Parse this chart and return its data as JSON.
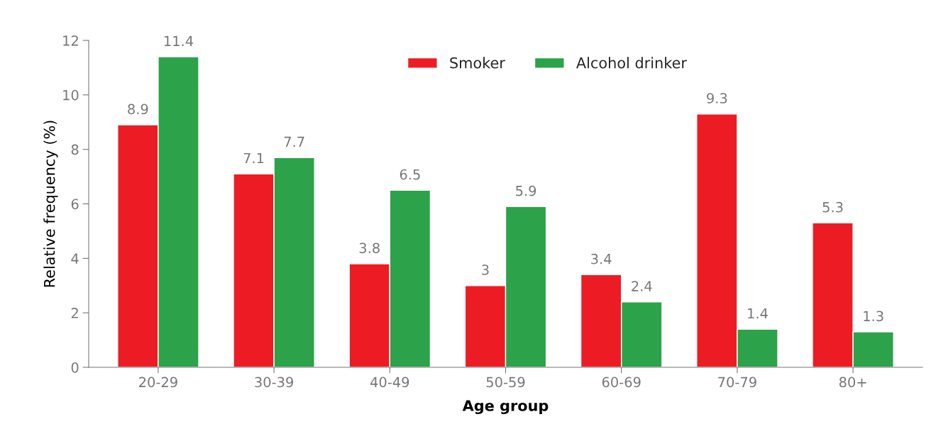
{
  "chart_data": {
    "type": "bar",
    "xlabel": "Age group",
    "ylabel": "Relative frequency (%)",
    "categories": [
      "20-29",
      "30-39",
      "40-49",
      "50-59",
      "60-69",
      "70-79",
      "80+"
    ],
    "series": [
      {
        "name": "Smoker",
        "color": "#ed1c24",
        "values": [
          8.9,
          7.1,
          3.8,
          3,
          3.4,
          9.3,
          5.3
        ]
      },
      {
        "name": "Alcohol drinker",
        "color": "#2ca24a",
        "values": [
          11.4,
          7.7,
          6.5,
          5.9,
          2.4,
          1.4,
          1.3
        ]
      }
    ],
    "ylim": [
      0,
      12
    ],
    "yticks": [
      0,
      2,
      4,
      6,
      8,
      10,
      12
    ],
    "data_labels": true,
    "grid": false,
    "legend": "top"
  }
}
